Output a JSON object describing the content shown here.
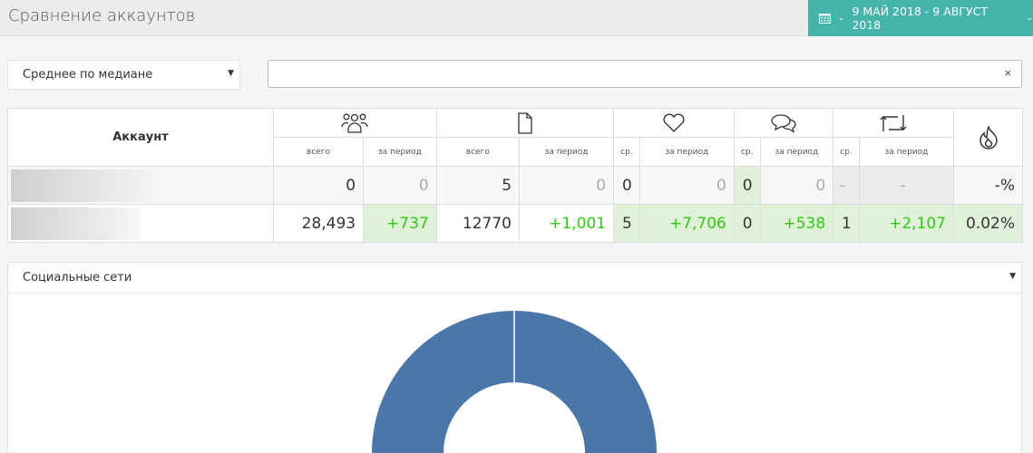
{
  "header": {
    "title": "Сравнение аккаунтов",
    "date_range": "9 МАЙ 2018 - 9 АВГУСТ 2018"
  },
  "filters": {
    "mode_select": "Среднее по медиане",
    "search_value": "",
    "clear": "×"
  },
  "table": {
    "account_header": "Аккаунт",
    "groups": [
      {
        "icon": "followers-icon",
        "sub": [
          "всего",
          "за период"
        ]
      },
      {
        "icon": "post-icon",
        "sub": [
          "всего",
          "за период"
        ]
      },
      {
        "icon": "heart-icon",
        "sub": [
          "ср.",
          "за период"
        ]
      },
      {
        "icon": "comments-icon",
        "sub": [
          "ср.",
          "за период"
        ]
      },
      {
        "icon": "repost-icon",
        "sub": [
          "ср.",
          "за период"
        ]
      }
    ],
    "er_icon": "fire-icon",
    "rows": [
      {
        "cells": [
          "0",
          "0",
          "5",
          "0",
          "0",
          "0",
          "0",
          "0",
          "-",
          "-",
          "-%"
        ]
      },
      {
        "cells": [
          "28,493",
          "+737",
          "12770",
          "+1,001",
          "5",
          "+7,706",
          "0",
          "+538",
          "1",
          "+2,107",
          "0.02%"
        ]
      }
    ]
  },
  "panel": {
    "select": "Социальные сети"
  },
  "chart_data": {
    "type": "pie",
    "donut": true,
    "slices": [
      {
        "value": 100,
        "color": "#4a76a8"
      }
    ]
  },
  "colors": {
    "accent": "#45b5ab",
    "positive": "#2ecc10",
    "highlight": "#e1f0d9",
    "donut": "#4a76a8"
  }
}
